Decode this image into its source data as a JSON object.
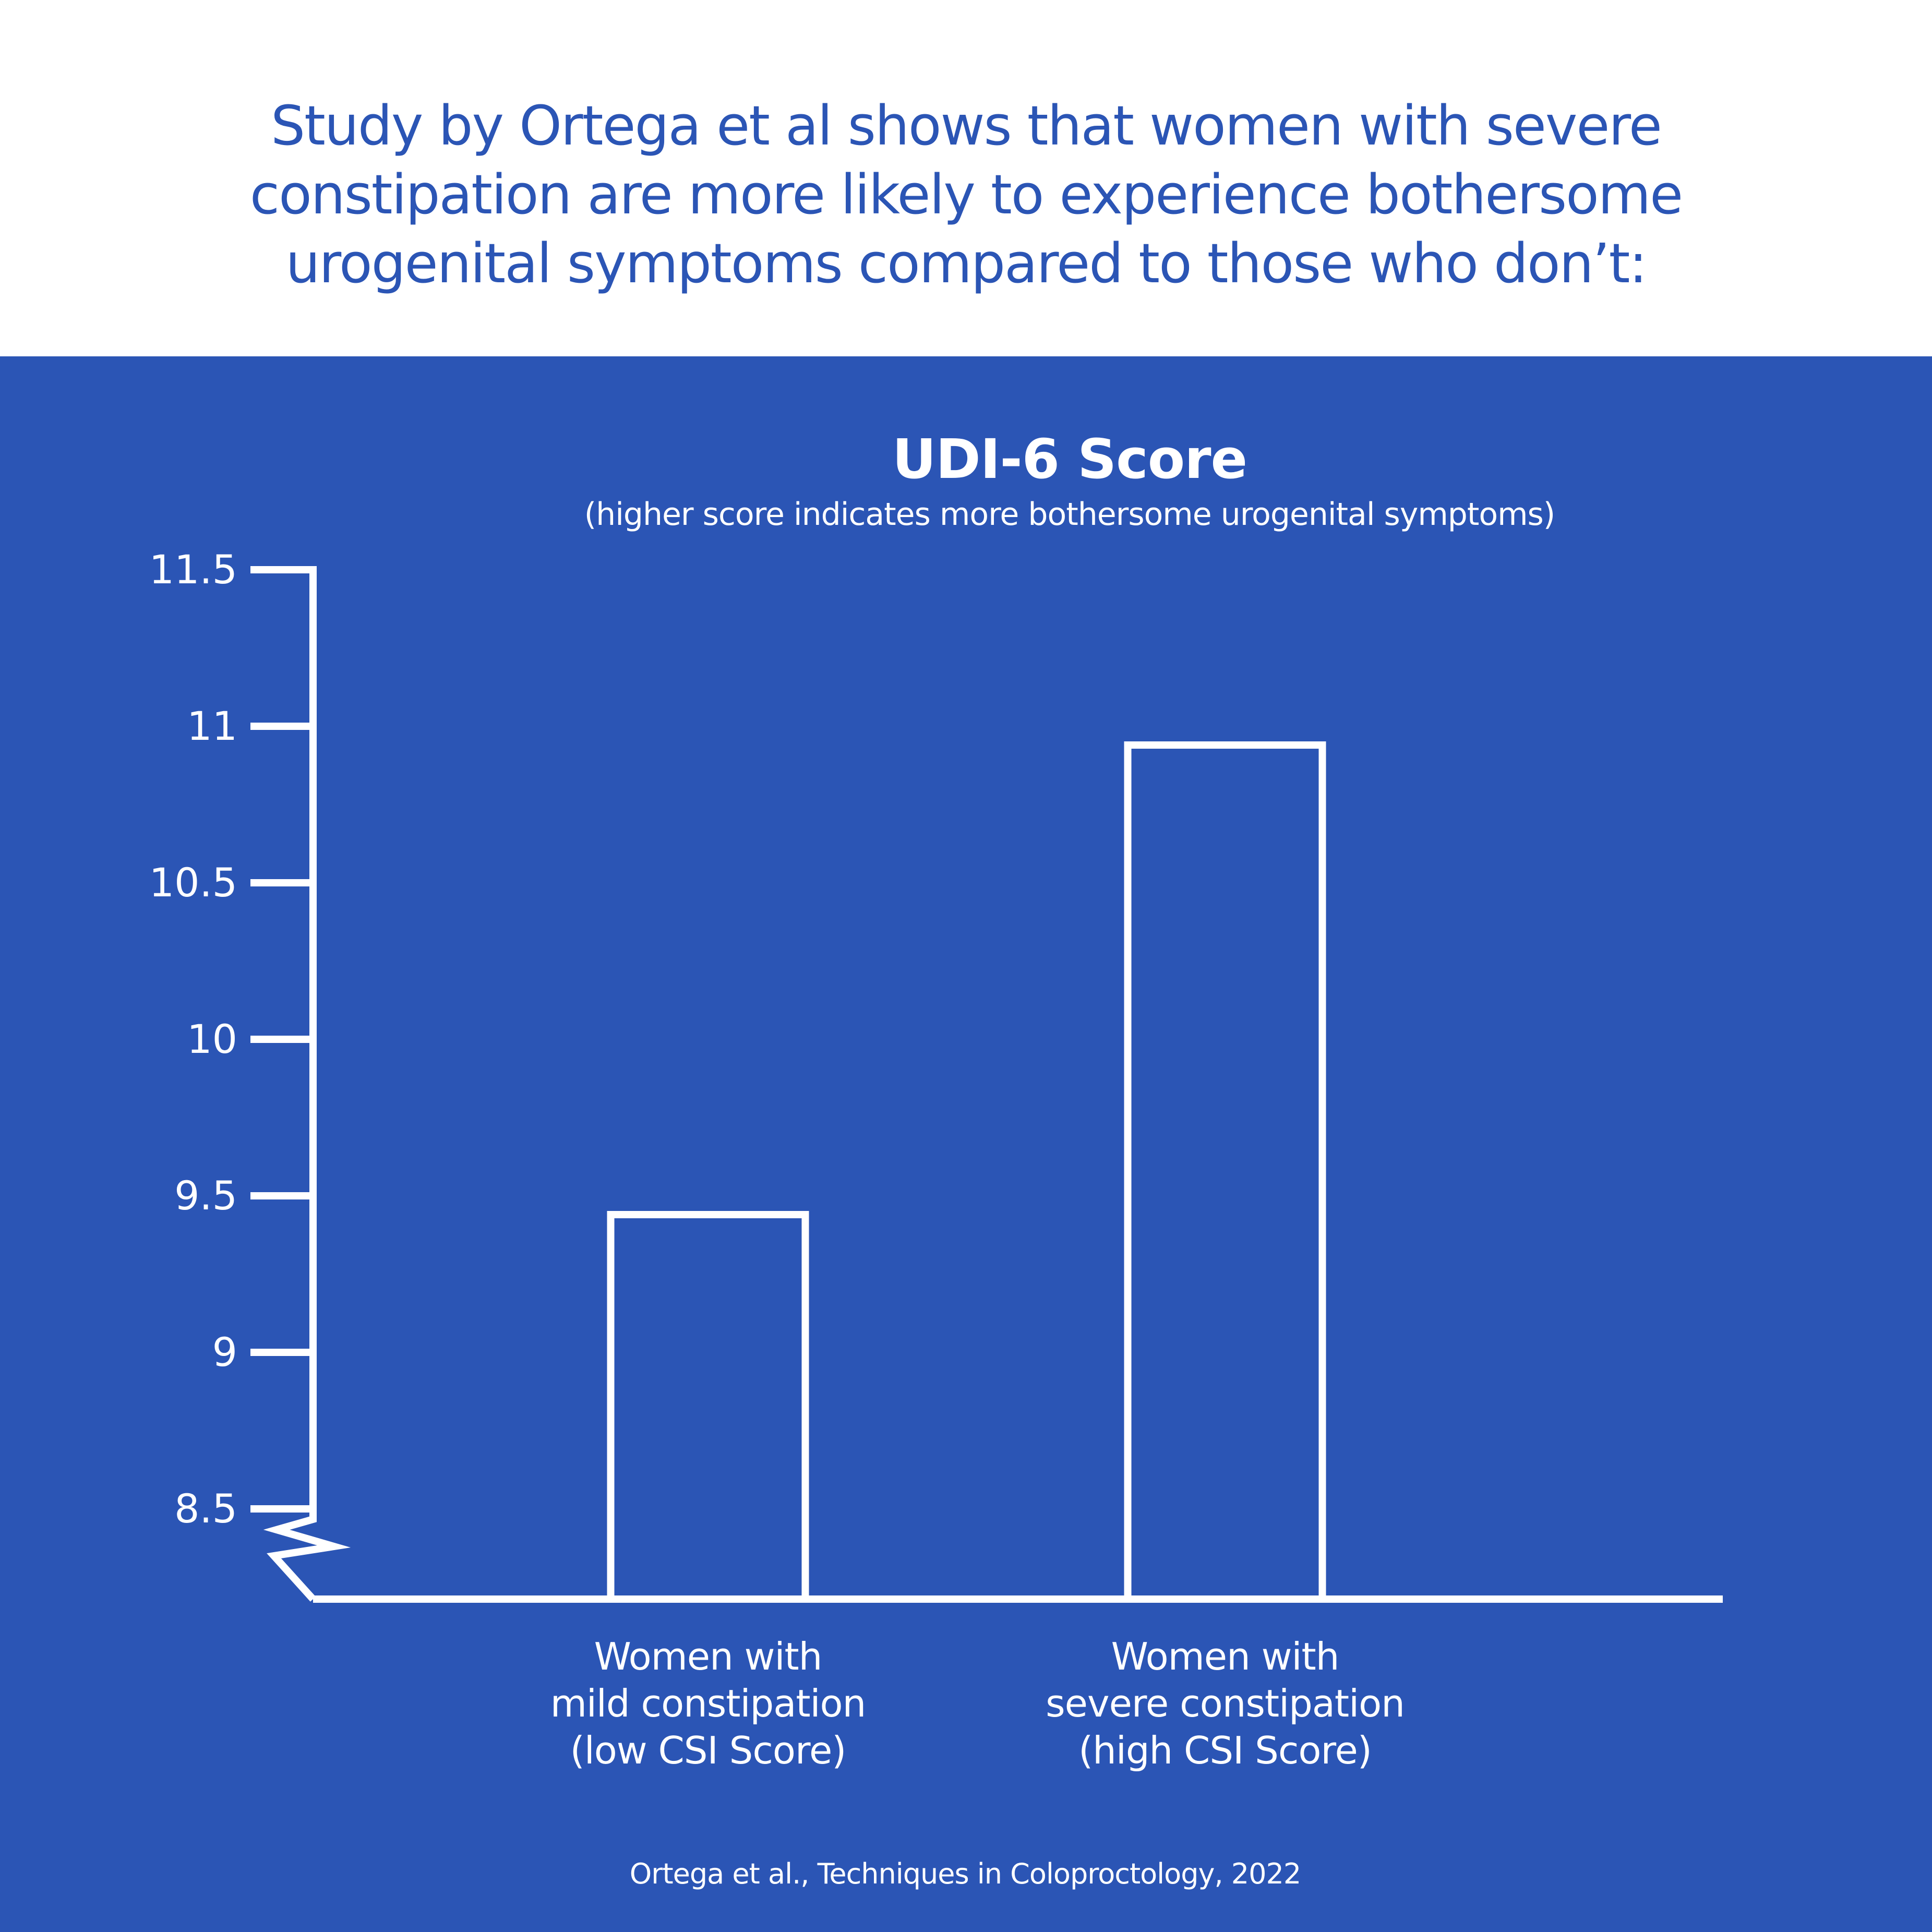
{
  "header": {
    "headline_lines": [
      "Study by Ortega et al shows that women with severe",
      "constipation are more likely to experience bothersome",
      "urogenital symptoms compared to those who don’t:"
    ]
  },
  "colors": {
    "brand_blue": "#2b55b5",
    "white": "#ffffff"
  },
  "chart_data": {
    "type": "bar",
    "title": "UDI-6 Score",
    "subtitle": "(higher score indicates more bothersome urogenital symptoms)",
    "xlabel": "",
    "ylabel": "",
    "categories": [
      [
        "Women with",
        "mild constipation",
        "(low CSI Score)"
      ],
      [
        "Women with",
        "severe constipation",
        "(high CSI Score)"
      ]
    ],
    "values": [
      9.44,
      10.94
    ],
    "ylim": [
      8.5,
      11.5
    ],
    "yticks": [
      8.5,
      9,
      9.5,
      10,
      10.5,
      11,
      11.5
    ],
    "ytick_labels": [
      "8.5",
      "9",
      "9.5",
      "10",
      "10.5",
      "11",
      "11.5"
    ],
    "axis_break": true,
    "grid": false,
    "bar_style": "outline",
    "legend": "none"
  },
  "footer": {
    "source": "Ortega et al., Techniques in Coloproctology, 2022"
  }
}
